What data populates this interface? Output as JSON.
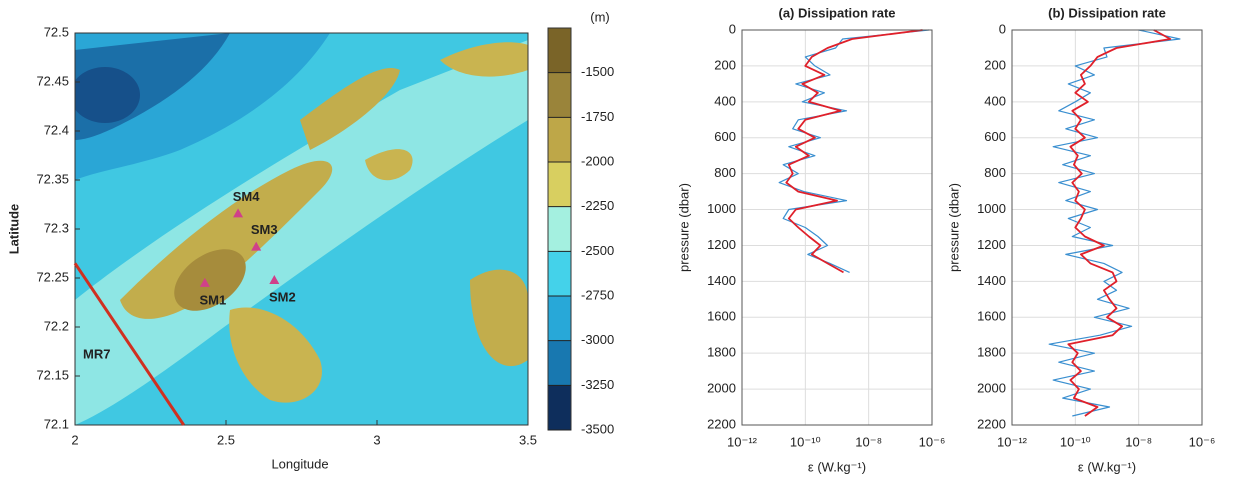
{
  "chart_data": [
    {
      "type": "map",
      "xlabel": "Longitude",
      "ylabel": "Latitude",
      "xlim": [
        2,
        3.5
      ],
      "xticks": [
        2,
        2.5,
        3,
        3.5
      ],
      "ylim": [
        72.1,
        72.5
      ],
      "yticks": [
        72.1,
        72.15,
        72.2,
        72.25,
        72.3,
        72.35,
        72.4,
        72.45,
        72.5
      ],
      "points": [
        {
          "name": "SM1",
          "lon": 2.43,
          "lat": 72.245
        },
        {
          "name": "SM2",
          "lon": 2.66,
          "lat": 72.248
        },
        {
          "name": "SM3",
          "lon": 2.6,
          "lat": 72.282
        },
        {
          "name": "SM4",
          "lon": 2.54,
          "lat": 72.316
        }
      ],
      "point_color": "#d0408a",
      "track": {
        "name": "MR7",
        "lon": [
          2,
          2.36
        ],
        "lat": [
          72.265,
          72.1
        ],
        "color": "#d03020"
      },
      "colorbar": {
        "label": "(m)",
        "lim": [
          -1250,
          -3500
        ],
        "ticks": [
          -1500,
          -1750,
          -2000,
          -2250,
          -2500,
          -2750,
          -3000,
          -3250,
          -3500
        ],
        "colors": [
          "#7a6428",
          "#9a843a",
          "#bea748",
          "#d8cf60",
          "#a4f0e0",
          "#44d2ea",
          "#28a8d8",
          "#1878b0",
          "#0e2e5c"
        ]
      }
    },
    {
      "type": "profile",
      "title": "(a) Dissipation rate",
      "ylabel": "pressure (dbar)",
      "xlabel": "ε (W.kg⁻¹)",
      "log_x": true,
      "grid": true,
      "invert_y": true,
      "xlim": [
        1e-12,
        1e-06
      ],
      "xticks": [
        {
          "value": 1e-12,
          "label": "10⁻¹²"
        },
        {
          "value": 1e-10,
          "label": "10⁻¹⁰"
        },
        {
          "value": 1e-08,
          "label": "10⁻⁸"
        },
        {
          "value": 1e-06,
          "label": "10⁻⁶"
        }
      ],
      "ylim": [
        0,
        2200
      ],
      "yticks": [
        0,
        200,
        400,
        600,
        800,
        1000,
        1200,
        1400,
        1600,
        1800,
        2000,
        2200
      ],
      "y": [
        0,
        50,
        100,
        150,
        200,
        250,
        300,
        350,
        400,
        450,
        500,
        550,
        600,
        650,
        700,
        750,
        800,
        850,
        900,
        950,
        1000,
        1050,
        1100,
        1150,
        1200,
        1250,
        1300,
        1350
      ],
      "series": [
        {
          "color": "#3a8fd0",
          "values": [
            8e-07,
            1.5e-09,
            9e-10,
            1e-10,
            2e-10,
            6e-10,
            5e-11,
            4e-10,
            8e-11,
            2e-09,
            6e-11,
            4e-11,
            3e-10,
            3e-11,
            2e-10,
            2e-11,
            6e-11,
            1.5e-11,
            9e-11,
            2e-09,
            3e-11,
            2e-11,
            1e-10,
            2.5e-10,
            5e-10,
            1.2e-10,
            6e-10,
            2.5e-09
          ]
        },
        {
          "color": "#e0202a",
          "values": [
            5e-07,
            3e-09,
            5e-10,
            1.6e-10,
            1e-10,
            4e-10,
            8e-11,
            2.5e-10,
            1.3e-10,
            1.3e-09,
            1e-10,
            6e-11,
            2e-10,
            5e-11,
            1.3e-10,
            3e-11,
            4e-11,
            2.5e-11,
            6e-11,
            1e-09,
            5e-11,
            3e-11,
            6e-11,
            1.3e-10,
            3e-10,
            1.6e-10,
            5e-10,
            1.6e-09
          ]
        }
      ]
    },
    {
      "type": "profile",
      "title": "(b) Dissipation rate",
      "ylabel": "pressure (dbar)",
      "xlabel": "ε (W.kg⁻¹)",
      "log_x": true,
      "grid": true,
      "invert_y": true,
      "xlim": [
        1e-12,
        1e-06
      ],
      "xticks": [
        {
          "value": 1e-12,
          "label": "10⁻¹²"
        },
        {
          "value": 1e-10,
          "label": "10⁻¹⁰"
        },
        {
          "value": 1e-08,
          "label": "10⁻⁸"
        },
        {
          "value": 1e-06,
          "label": "10⁻⁶"
        }
      ],
      "ylim": [
        0,
        2200
      ],
      "yticks": [
        0,
        200,
        400,
        600,
        800,
        1000,
        1200,
        1400,
        1600,
        1800,
        2000,
        2200
      ],
      "y": [
        0,
        50,
        100,
        150,
        200,
        250,
        300,
        350,
        400,
        450,
        500,
        550,
        600,
        650,
        700,
        750,
        800,
        850,
        900,
        950,
        1000,
        1050,
        1100,
        1150,
        1200,
        1250,
        1300,
        1350,
        1400,
        1450,
        1500,
        1550,
        1600,
        1650,
        1700,
        1750,
        1800,
        1850,
        1900,
        1950,
        2000,
        2050,
        2100,
        2150
      ],
      "series": [
        {
          "color": "#3a8fd0",
          "values": [
            1e-08,
            2e-07,
            8e-10,
            1e-09,
            1e-10,
            4e-10,
            6e-11,
            3e-10,
            1e-10,
            3e-11,
            4e-10,
            5e-11,
            5e-10,
            2e-11,
            3e-10,
            4e-11,
            4e-10,
            3e-11,
            3e-10,
            5e-11,
            5e-10,
            6e-11,
            3e-10,
            8e-11,
            1.5e-09,
            5e-11,
            8e-10,
            3e-09,
            8e-10,
            2e-09,
            5e-10,
            5e-09,
            4e-10,
            6e-09,
            6e-10,
            1.5e-11,
            4e-10,
            3e-11,
            4e-10,
            2e-11,
            3e-10,
            4e-11,
            1.2e-09,
            8e-11
          ]
        },
        {
          "color": "#e0202a",
          "values": [
            3e-08,
            1e-07,
            2e-09,
            5e-10,
            3e-10,
            1.5e-10,
            2e-10,
            1e-10,
            2.5e-10,
            8e-11,
            1.5e-10,
            1e-10,
            2e-10,
            7e-11,
            1.2e-10,
            9e-11,
            1.6e-10,
            8e-11,
            1.3e-10,
            1e-10,
            2e-10,
            1.5e-10,
            1e-10,
            2e-10,
            8e-10,
            1.5e-10,
            3e-10,
            1.5e-09,
            2e-09,
            8e-10,
            1.2e-09,
            2e-09,
            1e-09,
            3e-09,
            1.5e-09,
            6e-11,
            1.2e-10,
            8e-11,
            1.5e-10,
            7e-11,
            1.3e-10,
            9e-11,
            5e-10,
            2e-10
          ]
        }
      ]
    }
  ]
}
